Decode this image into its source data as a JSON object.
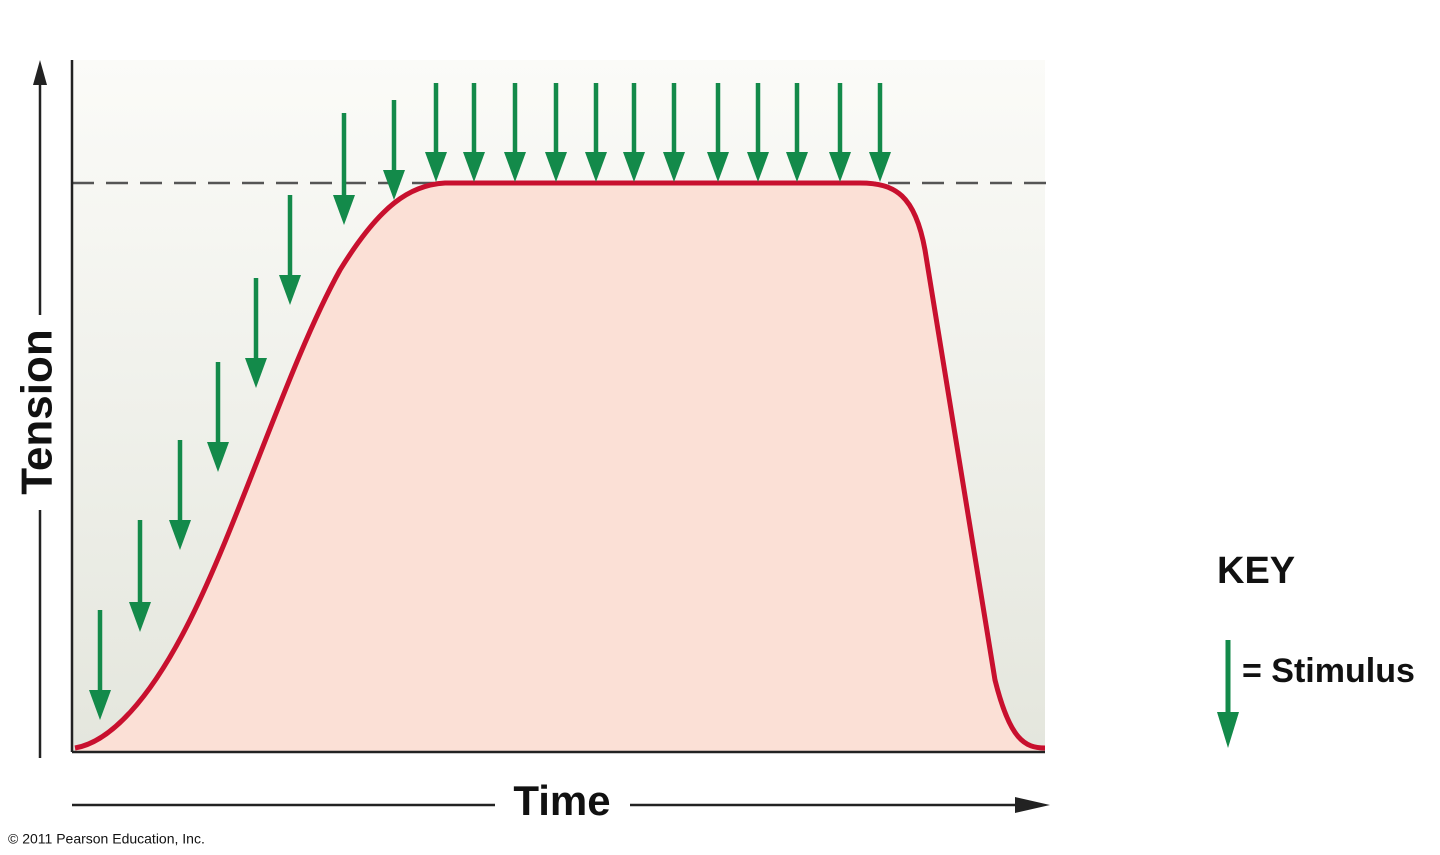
{
  "axes": {
    "y_label": "Tension",
    "x_label": "Time"
  },
  "key": {
    "title": "KEY",
    "stimulus": "= Stimulus"
  },
  "footer": {
    "copyright": "© 2011 Pearson Education, Inc."
  }
}
